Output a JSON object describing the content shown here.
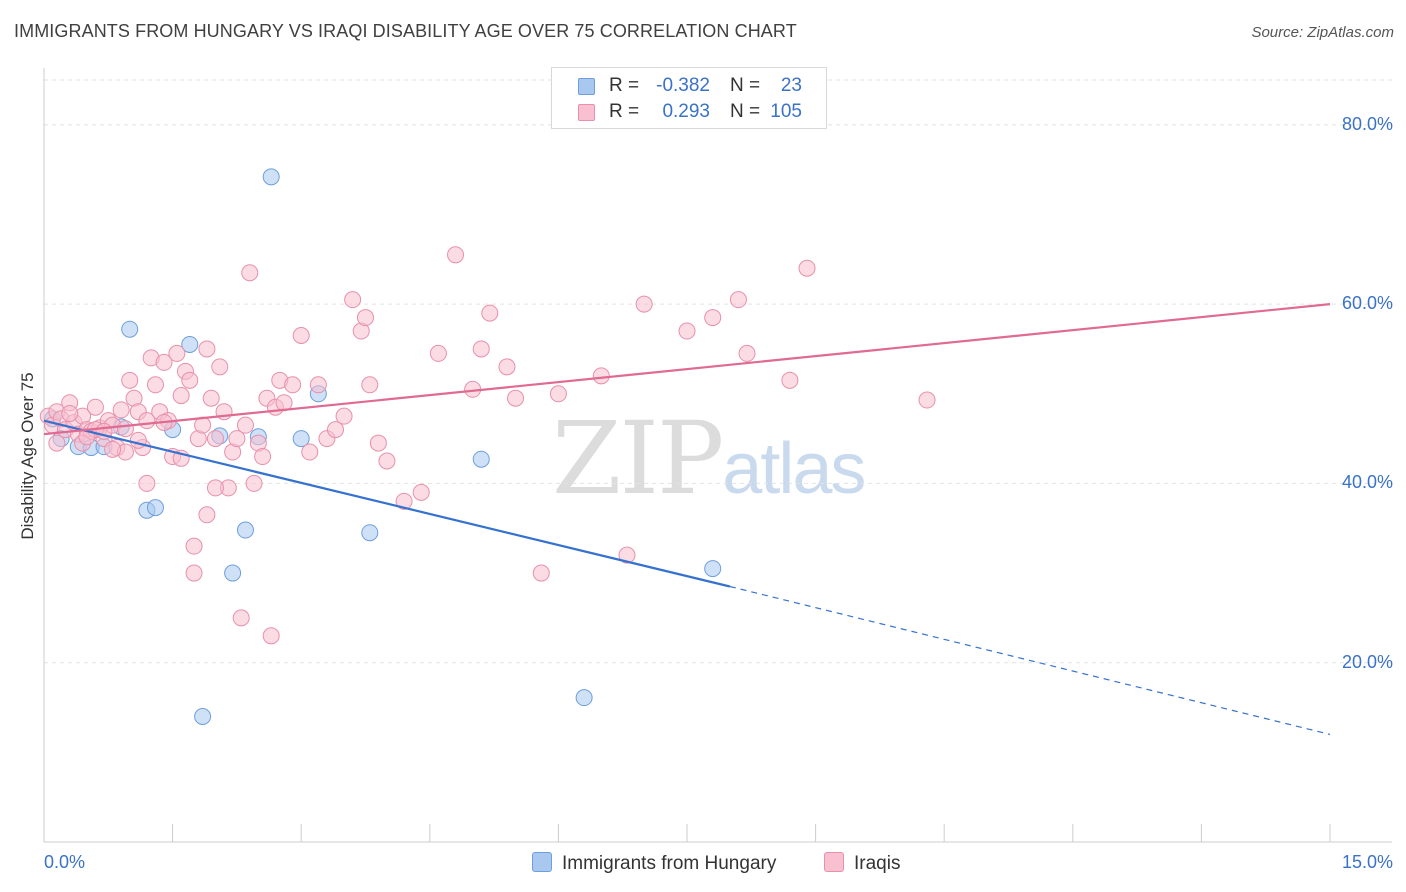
{
  "header": {
    "title": "IMMIGRANTS FROM HUNGARY VS IRAQI DISABILITY AGE OVER 75 CORRELATION CHART",
    "source": "Source: ZipAtlas.com"
  },
  "watermark": {
    "zip": "ZIP",
    "atlas": "atlas"
  },
  "legend": {
    "rows": [
      {
        "r_label": "R =",
        "r_value": "-0.382",
        "n_label": "N =",
        "n_value": "23",
        "color": "#a8c8f0",
        "stroke": "#6e9fdc"
      },
      {
        "r_label": "R =",
        "r_value": "0.293",
        "n_label": "N =",
        "n_value": "105",
        "color": "#f8c0d0",
        "stroke": "#e890aa"
      }
    ]
  },
  "chart_data": {
    "type": "scatter",
    "title": "IMMIGRANTS FROM HUNGARY VS IRAQI DISABILITY AGE OVER 75 CORRELATION CHART",
    "xlabel": "",
    "ylabel": "Disability Age Over 75",
    "xlim": [
      0,
      15
    ],
    "ylim": [
      0,
      85
    ],
    "x_tick_labels": [
      "0.0%",
      "15.0%"
    ],
    "y_ticks": [
      20,
      40,
      60,
      80
    ],
    "y_tick_labels": [
      "20.0%",
      "40.0%",
      "60.0%",
      "80.0%"
    ],
    "grid": true,
    "legend_position": "top-center",
    "series": [
      {
        "name": "Immigrants from Hungary",
        "color": "#6e9fdc",
        "fill": "#a8c8f0",
        "points": [
          [
            0.1,
            47.2
          ],
          [
            0.2,
            45.0
          ],
          [
            0.4,
            44.1
          ],
          [
            0.55,
            44.0
          ],
          [
            0.7,
            44.1
          ],
          [
            0.9,
            46.3
          ],
          [
            1.0,
            57.2
          ],
          [
            1.2,
            37.0
          ],
          [
            1.3,
            37.3
          ],
          [
            1.5,
            46.0
          ],
          [
            1.7,
            55.5
          ],
          [
            1.85,
            14.0
          ],
          [
            2.05,
            45.3
          ],
          [
            2.2,
            30.0
          ],
          [
            2.35,
            34.8
          ],
          [
            2.5,
            45.2
          ],
          [
            2.65,
            74.2
          ],
          [
            3.0,
            45.0
          ],
          [
            3.2,
            50.0
          ],
          [
            3.8,
            34.5
          ],
          [
            5.1,
            42.7
          ],
          [
            6.3,
            16.1
          ],
          [
            7.8,
            30.5
          ]
        ],
        "trend": {
          "x": [
            0.0,
            8.0
          ],
          "y": [
            47.0,
            28.5
          ],
          "dashed_to": [
            15.0,
            12.0
          ]
        }
      },
      {
        "name": "Iraqis",
        "color": "#e890aa",
        "fill": "#f8c0d0",
        "points": [
          [
            0.05,
            47.5
          ],
          [
            0.1,
            46.5
          ],
          [
            0.15,
            48.0
          ],
          [
            0.2,
            47.2
          ],
          [
            0.25,
            46.0
          ],
          [
            0.3,
            49.0
          ],
          [
            0.35,
            46.8
          ],
          [
            0.4,
            45.5
          ],
          [
            0.45,
            47.5
          ],
          [
            0.5,
            46.0
          ],
          [
            0.55,
            45.8
          ],
          [
            0.6,
            48.5
          ],
          [
            0.65,
            46.2
          ],
          [
            0.7,
            45.0
          ],
          [
            0.75,
            47.0
          ],
          [
            0.8,
            46.5
          ],
          [
            0.85,
            44.0
          ],
          [
            0.9,
            48.2
          ],
          [
            0.95,
            43.5
          ],
          [
            1.0,
            51.5
          ],
          [
            1.05,
            49.5
          ],
          [
            1.1,
            48.0
          ],
          [
            1.15,
            44.0
          ],
          [
            1.2,
            40.0
          ],
          [
            1.25,
            54.0
          ],
          [
            1.3,
            51.0
          ],
          [
            1.35,
            48.0
          ],
          [
            1.4,
            53.5
          ],
          [
            1.45,
            47.0
          ],
          [
            1.5,
            43.0
          ],
          [
            1.55,
            54.5
          ],
          [
            1.6,
            49.8
          ],
          [
            1.65,
            52.5
          ],
          [
            1.7,
            51.5
          ],
          [
            1.75,
            33.0
          ],
          [
            1.8,
            45.0
          ],
          [
            1.85,
            46.5
          ],
          [
            1.9,
            55.0
          ],
          [
            1.95,
            49.5
          ],
          [
            2.0,
            45.0
          ],
          [
            2.05,
            53.0
          ],
          [
            2.1,
            48.0
          ],
          [
            2.15,
            39.5
          ],
          [
            2.2,
            43.5
          ],
          [
            2.25,
            45.0
          ],
          [
            2.3,
            25.0
          ],
          [
            2.35,
            46.5
          ],
          [
            2.4,
            63.5
          ],
          [
            2.45,
            40.0
          ],
          [
            2.5,
            44.5
          ],
          [
            2.55,
            43.0
          ],
          [
            2.6,
            49.5
          ],
          [
            2.65,
            23.0
          ],
          [
            2.7,
            48.5
          ],
          [
            2.75,
            51.5
          ],
          [
            2.8,
            49.0
          ],
          [
            2.9,
            51.0
          ],
          [
            3.0,
            56.5
          ],
          [
            3.1,
            43.5
          ],
          [
            3.2,
            51.0
          ],
          [
            3.3,
            45.0
          ],
          [
            3.5,
            47.5
          ],
          [
            3.6,
            60.5
          ],
          [
            3.7,
            57.0
          ],
          [
            3.75,
            58.5
          ],
          [
            3.8,
            51.0
          ],
          [
            3.9,
            44.5
          ],
          [
            4.0,
            42.5
          ],
          [
            4.2,
            38.0
          ],
          [
            4.4,
            39.0
          ],
          [
            4.6,
            54.5
          ],
          [
            4.8,
            65.5
          ],
          [
            5.0,
            50.5
          ],
          [
            5.1,
            55.0
          ],
          [
            5.2,
            59.0
          ],
          [
            5.4,
            53.0
          ],
          [
            5.5,
            49.5
          ],
          [
            5.8,
            30.0
          ],
          [
            6.0,
            50.0
          ],
          [
            6.5,
            52.0
          ],
          [
            6.8,
            32.0
          ],
          [
            7.0,
            60.0
          ],
          [
            7.5,
            57.0
          ],
          [
            7.8,
            58.5
          ],
          [
            8.1,
            60.5
          ],
          [
            8.2,
            54.5
          ],
          [
            8.7,
            51.5
          ],
          [
            8.9,
            64.0
          ],
          [
            10.3,
            49.3
          ],
          [
            0.15,
            44.5
          ],
          [
            0.45,
            44.5
          ],
          [
            0.6,
            46.0
          ],
          [
            0.8,
            43.8
          ],
          [
            1.1,
            44.8
          ],
          [
            1.4,
            46.8
          ],
          [
            1.6,
            42.8
          ],
          [
            1.9,
            36.5
          ],
          [
            2.0,
            39.5
          ],
          [
            0.3,
            47.8
          ],
          [
            0.5,
            45.2
          ],
          [
            0.7,
            45.8
          ],
          [
            0.95,
            46.1
          ],
          [
            1.2,
            47.0
          ],
          [
            1.75,
            30.0
          ],
          [
            3.4,
            46.0
          ]
        ],
        "trend": {
          "x": [
            0.0,
            15.0
          ],
          "y": [
            45.5,
            60.0
          ]
        }
      }
    ]
  },
  "bottom_legend": {
    "items": [
      {
        "label": "Immigrants from Hungary",
        "color": "#a8c8f0",
        "stroke": "#6e9fdc"
      },
      {
        "label": "Iraqis",
        "color": "#f8c0d0",
        "stroke": "#e890aa"
      }
    ]
  }
}
